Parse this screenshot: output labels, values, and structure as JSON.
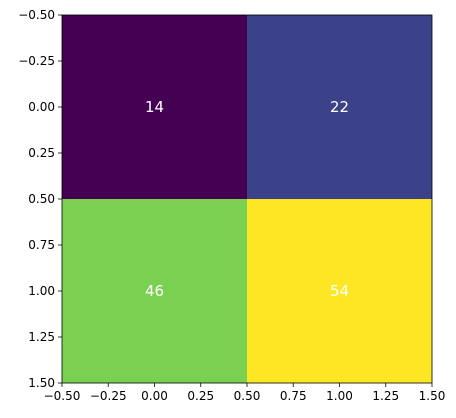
{
  "chart_data": {
    "type": "heatmap",
    "rows": 2,
    "cols": 2,
    "values": [
      [
        14,
        22
      ],
      [
        46,
        54
      ]
    ],
    "cell_colors": [
      [
        "#440154",
        "#3b428a"
      ],
      [
        "#7ad151",
        "#fde725"
      ]
    ],
    "value_labels": [
      [
        "14",
        "22"
      ],
      [
        "46",
        "54"
      ]
    ],
    "label_color": "#ffffff",
    "xlim": [
      -0.5,
      1.5
    ],
    "ylim": [
      1.5,
      -0.5
    ],
    "x_ticks": [
      -0.5,
      -0.25,
      0.0,
      0.25,
      0.5,
      0.75,
      1.0,
      1.25,
      1.5
    ],
    "x_tick_labels": [
      "−0.50",
      "−0.25",
      "0.00",
      "0.25",
      "0.50",
      "0.75",
      "1.00",
      "1.25",
      "1.50"
    ],
    "y_ticks": [
      -0.5,
      -0.25,
      0.0,
      0.25,
      0.5,
      0.75,
      1.0,
      1.25,
      1.5
    ],
    "y_tick_labels": [
      "−0.50",
      "−0.25",
      "0.00",
      "0.25",
      "0.50",
      "0.75",
      "1.00",
      "1.25",
      "1.50"
    ],
    "grid": false,
    "colormap": "viridis"
  }
}
